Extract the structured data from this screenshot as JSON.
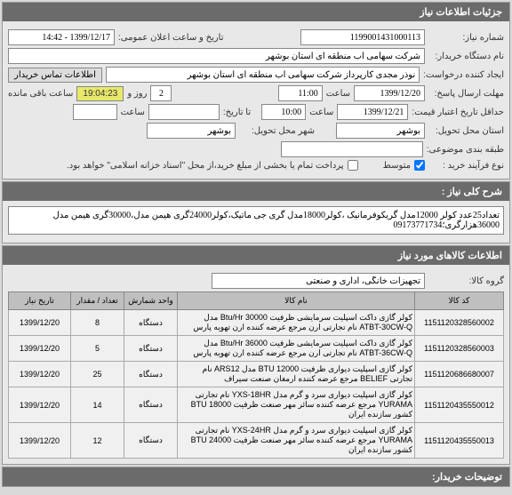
{
  "panels": {
    "creator": {
      "title": "جزئیات اطلاعات نیاز"
    },
    "description": {
      "title": "شرح کلی نیاز :"
    },
    "items": {
      "title": "اطلاعات کالاهای مورد نیاز"
    },
    "buyer_notes": {
      "title": "توضیحات خریدار:"
    }
  },
  "fields": {
    "need_number": {
      "label": "شماره نیاز:",
      "value": "1199001431000113"
    },
    "announce_datetime": {
      "label": "تاریخ و ساعت اعلان عمومی:",
      "value": "1399/12/17 - 14:42"
    },
    "buyer_org": {
      "label": "نام دستگاه خریدار:",
      "value": "شرکت سهامی آب منطقه ای استان بوشهر"
    },
    "creator": {
      "label": "ایجاد کننده درخواست:",
      "value": "نوذر مجدی کارپرداز شرکت سهامی آب منطقه ای استان بوشهر"
    },
    "contact_btn": "اطلاعات تماس خریدار",
    "response_deadline": {
      "label": "مهلت ارسال پاسخ:",
      "date": "1399/12/20",
      "time": "11:00"
    },
    "time_word": "ساعت",
    "day_word": "روز و",
    "remaining_label": "ساعت باقی مانده",
    "countdown": "19:04:23",
    "days_remaining": "2",
    "price_validity": {
      "label": "حداقل تاریخ اعتبار قیمت:",
      "date": "1399/12/21",
      "time": "10:00"
    },
    "until_label": "تا تاریخ:",
    "delivery_province": {
      "label": "استان محل تحویل:",
      "value": "بوشهر"
    },
    "delivery_city": {
      "label": "شهر محل تحویل:",
      "value": "بوشهر"
    },
    "grouping": {
      "label": "طبقه بندی موضوعی:",
      "value": ""
    },
    "buy_type": {
      "label": "نوع فرآیند خرید :",
      "medium": "متوسط"
    },
    "partial_pay": "پرداخت تمام یا بخشی از مبلغ خرید،از محل \"اسناد خزانه اسلامی\" خواهد بود.",
    "need_desc": "تعداد25عدد کولر 12000مدل گریکوفرمانیک ،کولر18000مدل گری جی ماتیک،کولر24000گری هیمن مدل،30000گری هیمن مدل 36000هزارگری؛09173771734",
    "group": {
      "label": "گروه کالا:",
      "value": "تجهیزات خانگی، اداری و صنعتی"
    }
  },
  "table": {
    "headers": {
      "code": "کد کالا",
      "name": "نام کالا",
      "unit": "واحد شمارش",
      "qty": "تعداد / مقدار",
      "date": "تاریخ نیاز"
    },
    "rows": [
      {
        "code": "1151120328560002",
        "name": "کولر گازی داکت اسپلیت سرمایشی ظرفیت Btu/Hr 30000 مدل ATBT-30CW-Q نام تجارتی ارن مرجع عرضه کننده ارن تهویه پارس",
        "unit": "دستگاه",
        "qty": "8",
        "date": "1399/12/20"
      },
      {
        "code": "1151120328560003",
        "name": "کولر گازی داکت اسپلیت سرمایشی ظرفیت Btu/Hr 36000 مدل ATBT-36CW-Q نام تجارتی ارن مرجع عرضه کننده ارن تهویه پارس",
        "unit": "دستگاه",
        "qty": "5",
        "date": "1399/12/20"
      },
      {
        "code": "1151120686680007",
        "name": "کولر گازی اسپلیت دیواری ظرفیت BTU 12000 مدل ARS12 نام تجارتی BELIEF مرجع عرضه کننده ارمغان صنعت سیراف",
        "unit": "دستگاه",
        "qty": "25",
        "date": "1399/12/20"
      },
      {
        "code": "1151120435550012",
        "name": "کولر گازی اسپلیت دیواری سرد و گرم مدل YXS-18HR نام تجارتی YURAMA مرجع عرضه کننده سائر مهر صنعت ظرفیت BTU 18000 کشور سازنده ایران",
        "unit": "دستگاه",
        "qty": "14",
        "date": "1399/12/20"
      },
      {
        "code": "1151120435550013",
        "name": "کولر گازی اسپلیت دیواری سرد و گرم مدل YXS-24HR نام تجارتی YURAMA مرجع عرضه کننده سائر مهر صنعت ظرفیت BTU 24000 کشور سازنده ایران",
        "unit": "دستگاه",
        "qty": "12",
        "date": "1399/12/20"
      }
    ]
  }
}
